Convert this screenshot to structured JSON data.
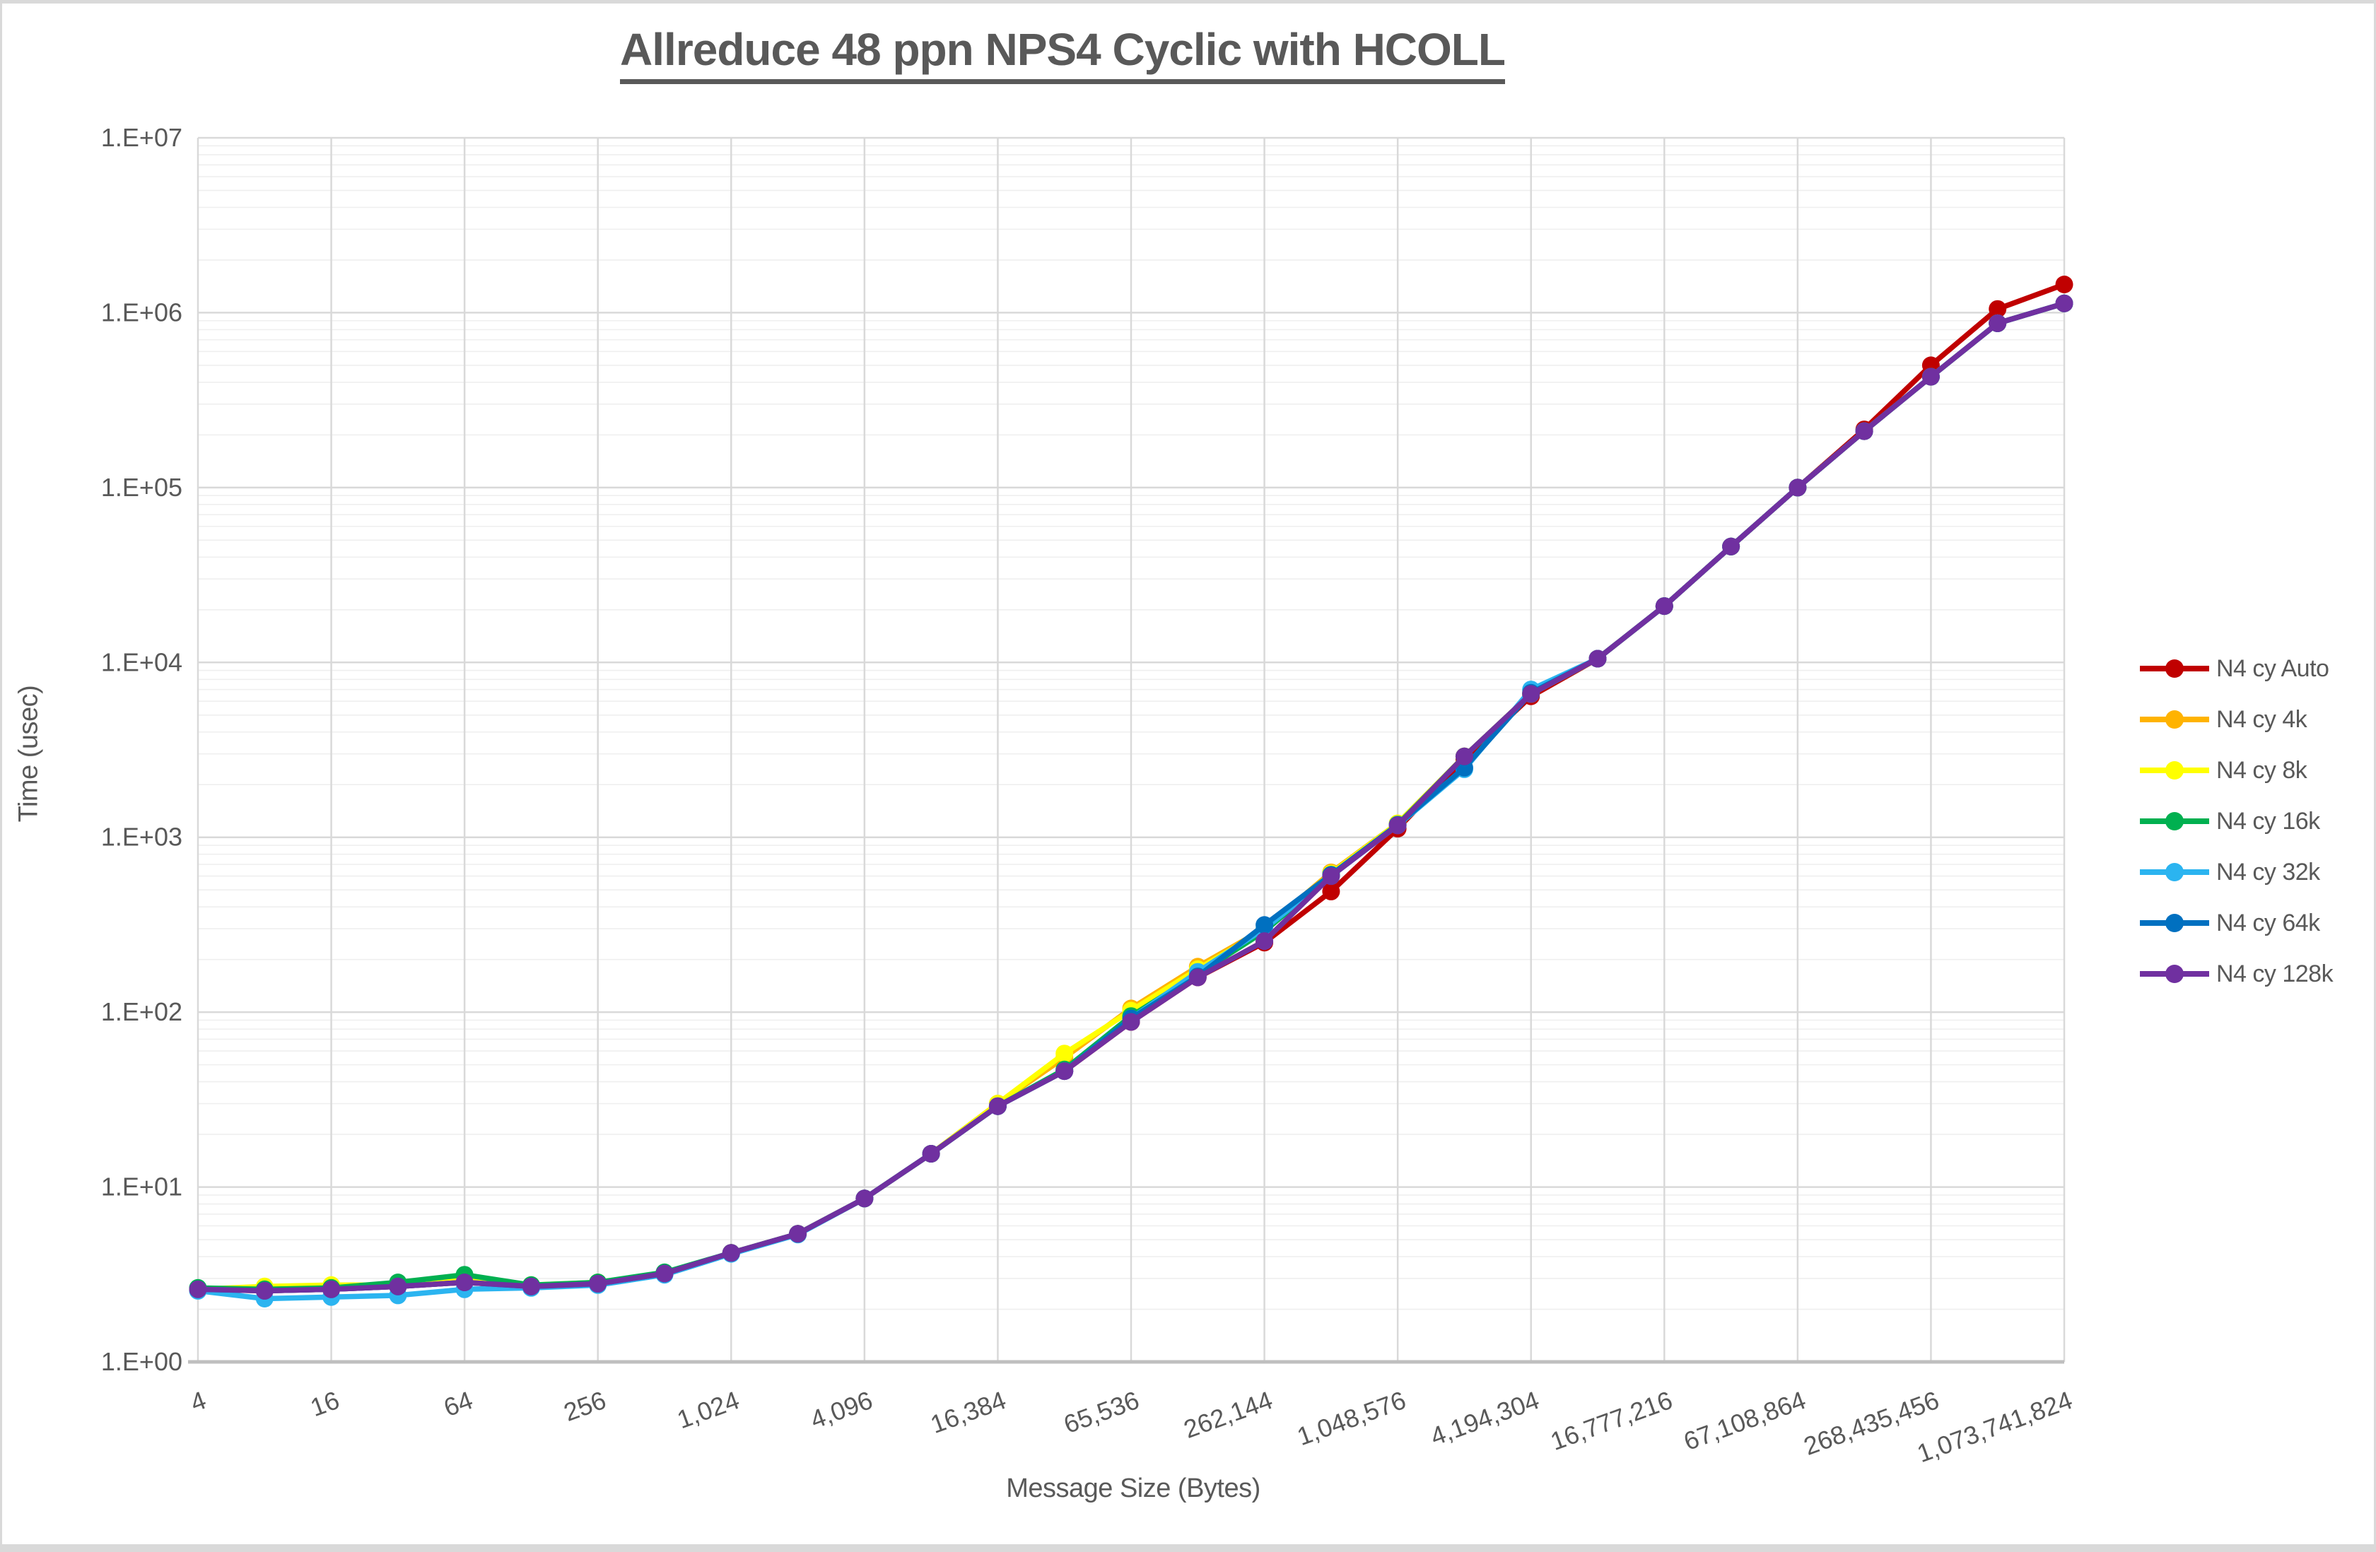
{
  "title": "Allreduce 48 ppn NPS4 Cyclic with HCOLL",
  "x_axis_title": "Message Size (Bytes)",
  "y_axis_title": "Time (usec)",
  "y_tick_labels": [
    "1.E+00",
    "1.E+01",
    "1.E+02",
    "1.E+03",
    "1.E+04",
    "1.E+05",
    "1.E+06",
    "1.E+07"
  ],
  "x_tick_labels": [
    "4",
    "16",
    "64",
    "256",
    "1,024",
    "4,096",
    "16,384",
    "65,536",
    "262,144",
    "1,048,576",
    "4,194,304",
    "16,777,216",
    "67,108,864",
    "268,435,456",
    "1,073,741,824"
  ],
  "colors": {
    "title_text": "#595959",
    "axis_text": "#595959",
    "major_gridline": "#D9D9D9",
    "minor_gridline": "#EFEFEF",
    "axis_line": "#BFBFBF",
    "background": "#FFFFFF",
    "frame_border": "#D9D9D9"
  },
  "chart_data": {
    "type": "line",
    "x_scale": "log2",
    "y_scale": "log10",
    "ylim": [
      1,
      10000000
    ],
    "grid": "major and minor log gridlines",
    "legend_position": "right",
    "x": [
      4,
      8,
      16,
      32,
      64,
      128,
      256,
      512,
      1024,
      2048,
      4096,
      8192,
      16384,
      32768,
      65536,
      131072,
      262144,
      524288,
      1048576,
      2097152,
      4194304,
      8388608,
      16777216,
      33554432,
      67108864,
      134217728,
      268435456,
      536870912,
      1073741824
    ],
    "series": [
      {
        "name": "N4 cy Auto",
        "color": "#C00000",
        "values": [
          2.6,
          2.55,
          2.6,
          2.7,
          2.85,
          2.7,
          2.8,
          3.2,
          4.2,
          5.4,
          8.6,
          15.5,
          29,
          46,
          88,
          158,
          250,
          490,
          1120,
          2800,
          6400,
          10500,
          21000,
          46000,
          100000,
          215000,
          500000,
          1050000,
          1450000
        ]
      },
      {
        "name": "N4 cy 4k",
        "color": "#FFB300",
        "values": [
          2.6,
          2.6,
          2.65,
          2.7,
          2.9,
          2.7,
          2.8,
          3.2,
          4.2,
          5.4,
          8.6,
          15.5,
          30,
          55,
          105,
          182,
          300,
          630,
          1200,
          2900,
          6600,
          10500,
          21000,
          46000,
          100000,
          210000,
          430000,
          870000,
          1130000
        ]
      },
      {
        "name": "N4 cy 8k",
        "color": "#FFFF00",
        "values": [
          2.6,
          2.7,
          2.75,
          2.75,
          2.95,
          2.75,
          2.85,
          3.2,
          4.2,
          5.4,
          8.6,
          15.5,
          30,
          58,
          102,
          176,
          295,
          620,
          1200,
          2900,
          6600,
          10500,
          21000,
          46000,
          100000,
          210000,
          430000,
          870000,
          1130000
        ]
      },
      {
        "name": "N4 cy 16k",
        "color": "#00B050",
        "values": [
          2.65,
          2.6,
          2.65,
          2.85,
          3.15,
          2.75,
          2.85,
          3.25,
          4.2,
          5.4,
          8.6,
          15.5,
          29,
          47,
          95,
          165,
          290,
          610,
          1180,
          2900,
          6600,
          10500,
          21000,
          46000,
          100000,
          210000,
          430000,
          870000,
          1130000
        ]
      },
      {
        "name": "N4 cy 32k",
        "color": "#2BB4F0",
        "values": [
          2.55,
          2.3,
          2.35,
          2.4,
          2.6,
          2.65,
          2.75,
          3.15,
          4.15,
          5.35,
          8.6,
          15.5,
          29,
          46,
          92,
          170,
          300,
          600,
          1170,
          2450,
          7000,
          10500,
          21000,
          46000,
          100000,
          210000,
          430000,
          870000,
          1130000
        ]
      },
      {
        "name": "N4 cy 64k",
        "color": "#0070C0",
        "values": [
          2.6,
          2.55,
          2.6,
          2.7,
          2.85,
          2.7,
          2.8,
          3.2,
          4.2,
          5.4,
          8.6,
          15.5,
          29,
          46,
          92,
          160,
          315,
          610,
          1180,
          2500,
          6700,
          10500,
          21000,
          46000,
          100000,
          210000,
          430000,
          870000,
          1130000
        ]
      },
      {
        "name": "N4 cy 128k",
        "color": "#7030A0",
        "values": [
          2.6,
          2.55,
          2.6,
          2.7,
          2.85,
          2.7,
          2.8,
          3.2,
          4.2,
          5.4,
          8.6,
          15.5,
          29,
          46,
          88,
          158,
          255,
          600,
          1170,
          2900,
          6600,
          10500,
          21000,
          46000,
          100000,
          210000,
          430000,
          870000,
          1130000
        ]
      }
    ]
  }
}
